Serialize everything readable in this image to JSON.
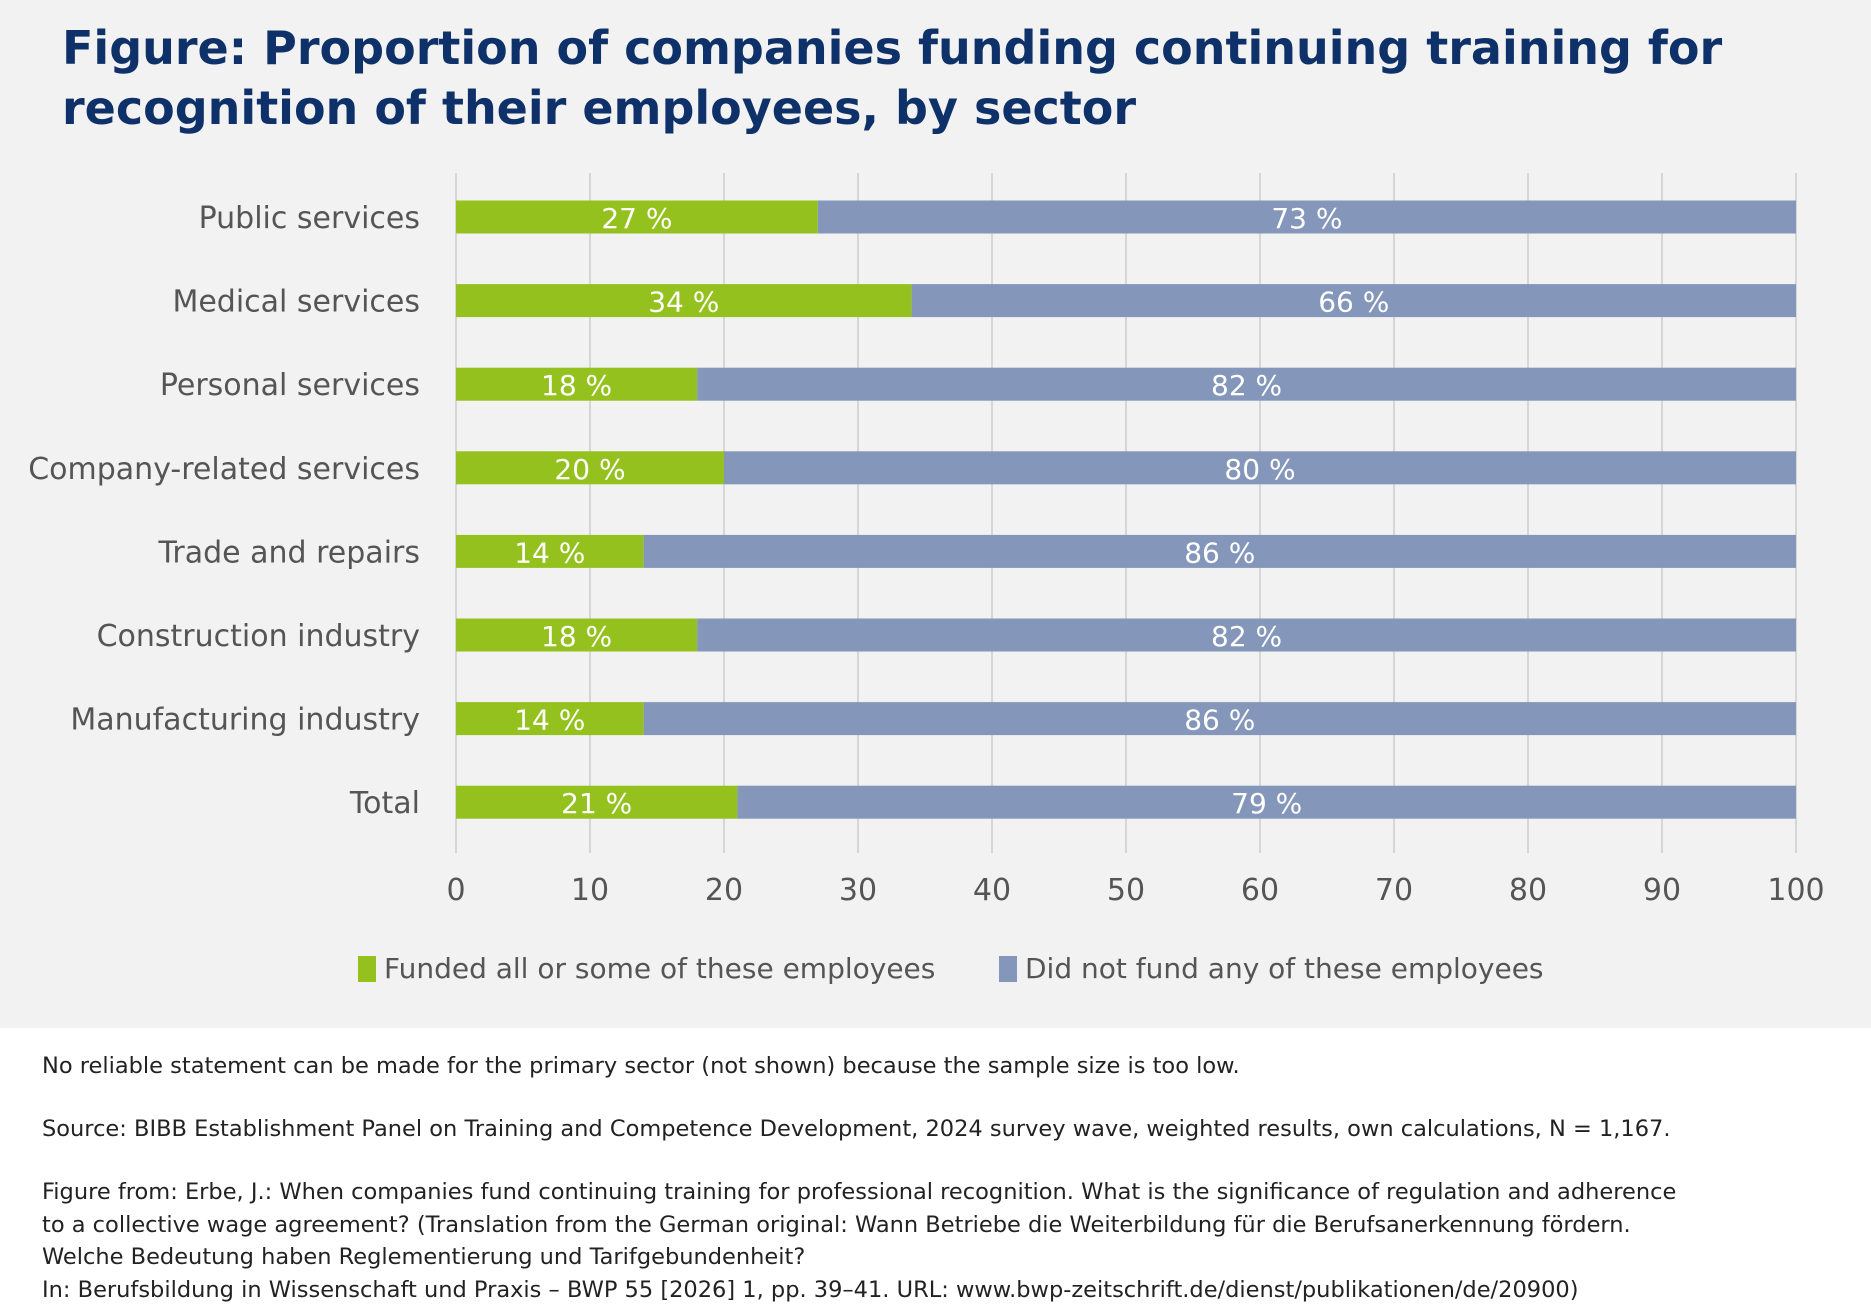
{
  "title": "Figure: Proportion of companies funding continuing training for recognition of their employees, by sector",
  "chart_data": {
    "type": "bar",
    "orientation": "horizontal",
    "stacked": true,
    "title": "Figure: Proportion of companies funding continuing training for recognition of their employees, by sector",
    "categories": [
      "Public services",
      "Medical services",
      "Personal services",
      "Company-related services",
      "Trade and repairs",
      "Construction industry",
      "Manufacturing industry",
      "Total"
    ],
    "series": [
      {
        "name": "Funded all or some of these employees",
        "color": "#95c11f",
        "values": [
          27,
          34,
          18,
          20,
          14,
          18,
          14,
          21
        ],
        "labels": [
          "27 %",
          "34 %",
          "18 %",
          "20 %",
          "14 %",
          "18 %",
          "14 %",
          "21 %"
        ]
      },
      {
        "name": "Did not fund any of these employees",
        "color": "#8496b9",
        "values": [
          73,
          66,
          82,
          80,
          86,
          82,
          86,
          79
        ],
        "labels": [
          "73 %",
          "66 %",
          "82 %",
          "80 %",
          "86 %",
          "82 %",
          "86 %",
          "79 %"
        ]
      }
    ],
    "xlim": [
      0,
      100
    ],
    "xticks": [
      "0",
      "10",
      "20",
      "30",
      "40",
      "50",
      "60",
      "70",
      "80",
      "90",
      "100"
    ],
    "grid": true,
    "legend_position": "bottom",
    "xlabel": "",
    "ylabel": ""
  },
  "notes": {
    "sample": "No reliable statement can be made for the primary sector (not shown) because the sample size is too low.",
    "source": "Source: BIBB Establishment Panel on Training and Competence Development, 2024 survey wave, weighted results, own calculations, N = 1,167.",
    "citation_1": "Figure from: Erbe, J.: When companies fund continuing training for professional recognition. What is the significance of regulation and adherence",
    "citation_2": "to a collective wage agreement? (Translation from the German original: Wann Betriebe die Weiterbildung für die Berufsanerkennung fördern.",
    "citation_3": "Welche Bedeutung haben Reglementierung und Tarifgebundenheit?",
    "citation_4": "In: Berufsbildung in Wissenschaft und Praxis – BWP 55 [2026] 1, pp. 39–41. URL: www.bwp-zeitschrift.de/dienst/publikationen/de/20900)"
  }
}
